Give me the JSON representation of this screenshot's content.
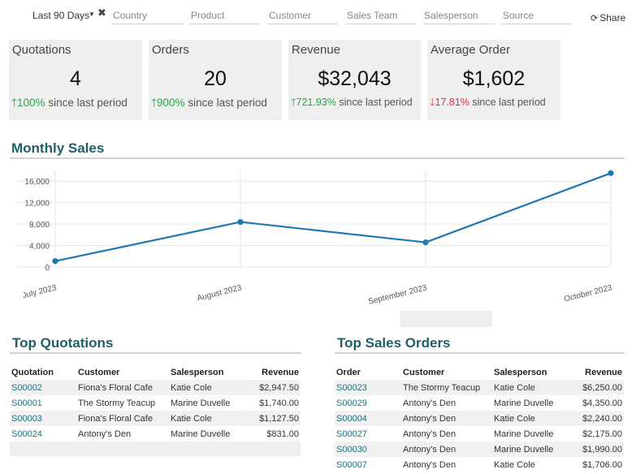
{
  "filters": {
    "period": "Last 90 Days",
    "fields": [
      "Country",
      "Product",
      "Customer",
      "Sales Team",
      "Salesperson",
      "Source"
    ],
    "share_label": "Share"
  },
  "kpis": [
    {
      "title": "Quotations",
      "value": "4",
      "trend": "100%",
      "suffix": "since last period",
      "direction": "up"
    },
    {
      "title": "Orders",
      "value": "20",
      "trend": "900%",
      "suffix": "since last period",
      "direction": "up"
    },
    {
      "title": "Revenue",
      "value": "$32,043",
      "trend": "721.93%",
      "suffix": "since last period",
      "direction": "up"
    },
    {
      "title": "Average Order",
      "value": "$1,602",
      "trend": "17.81%",
      "suffix": "since last period",
      "direction": "down"
    }
  ],
  "monthly_sales_title": "Monthly Sales",
  "chart_data": {
    "type": "line",
    "categories": [
      "July 2023",
      "August 2023",
      "September 2023",
      "October 2023"
    ],
    "series": [
      {
        "values": [
          1100,
          8400,
          4600,
          17500
        ]
      }
    ],
    "ylim": [
      0,
      18000
    ],
    "yticks": [
      0,
      4000,
      8000,
      12000,
      16000
    ],
    "ytick_labels": [
      "0",
      "4,000",
      "8,000",
      "12,000",
      "16,000"
    ],
    "grid": true,
    "color": "#1f77b4"
  },
  "top_quotations": {
    "title": "Top Quotations",
    "headers": [
      "Quotation",
      "Customer",
      "Salesperson",
      "Revenue"
    ],
    "rows": [
      [
        "S00002",
        "Fiona's Floral Cafe",
        "Katie Cole",
        "$2,947.50"
      ],
      [
        "S00001",
        "The Stormy Teacup",
        "Marine Duvelle",
        "$1,740.00"
      ],
      [
        "S00003",
        "Fiona's Floral Cafe",
        "Katie Cole",
        "$1,127.50"
      ],
      [
        "S00024",
        "Antony's Den",
        "Marine Duvelle",
        "$831.00"
      ]
    ]
  },
  "top_sales_orders": {
    "title": "Top Sales Orders",
    "headers": [
      "Order",
      "Customer",
      "Salesperson",
      "Revenue"
    ],
    "rows": [
      [
        "S00023",
        "The Stormy Teacup",
        "Katie Cole",
        "$6,250.00"
      ],
      [
        "S00029",
        "Antony's Den",
        "Marine Duvelle",
        "$4,350.00"
      ],
      [
        "S00004",
        "Antony's Den",
        "Katie Cole",
        "$2,240.00"
      ],
      [
        "S00027",
        "Antony's Den",
        "Marine Duvelle",
        "$2,175.00"
      ],
      [
        "S00030",
        "Antony's Den",
        "Marine Duvelle",
        "$1,990.00"
      ],
      [
        "S00007",
        "Antony's Den",
        "Katie Cole",
        "$1,706.00"
      ]
    ]
  }
}
